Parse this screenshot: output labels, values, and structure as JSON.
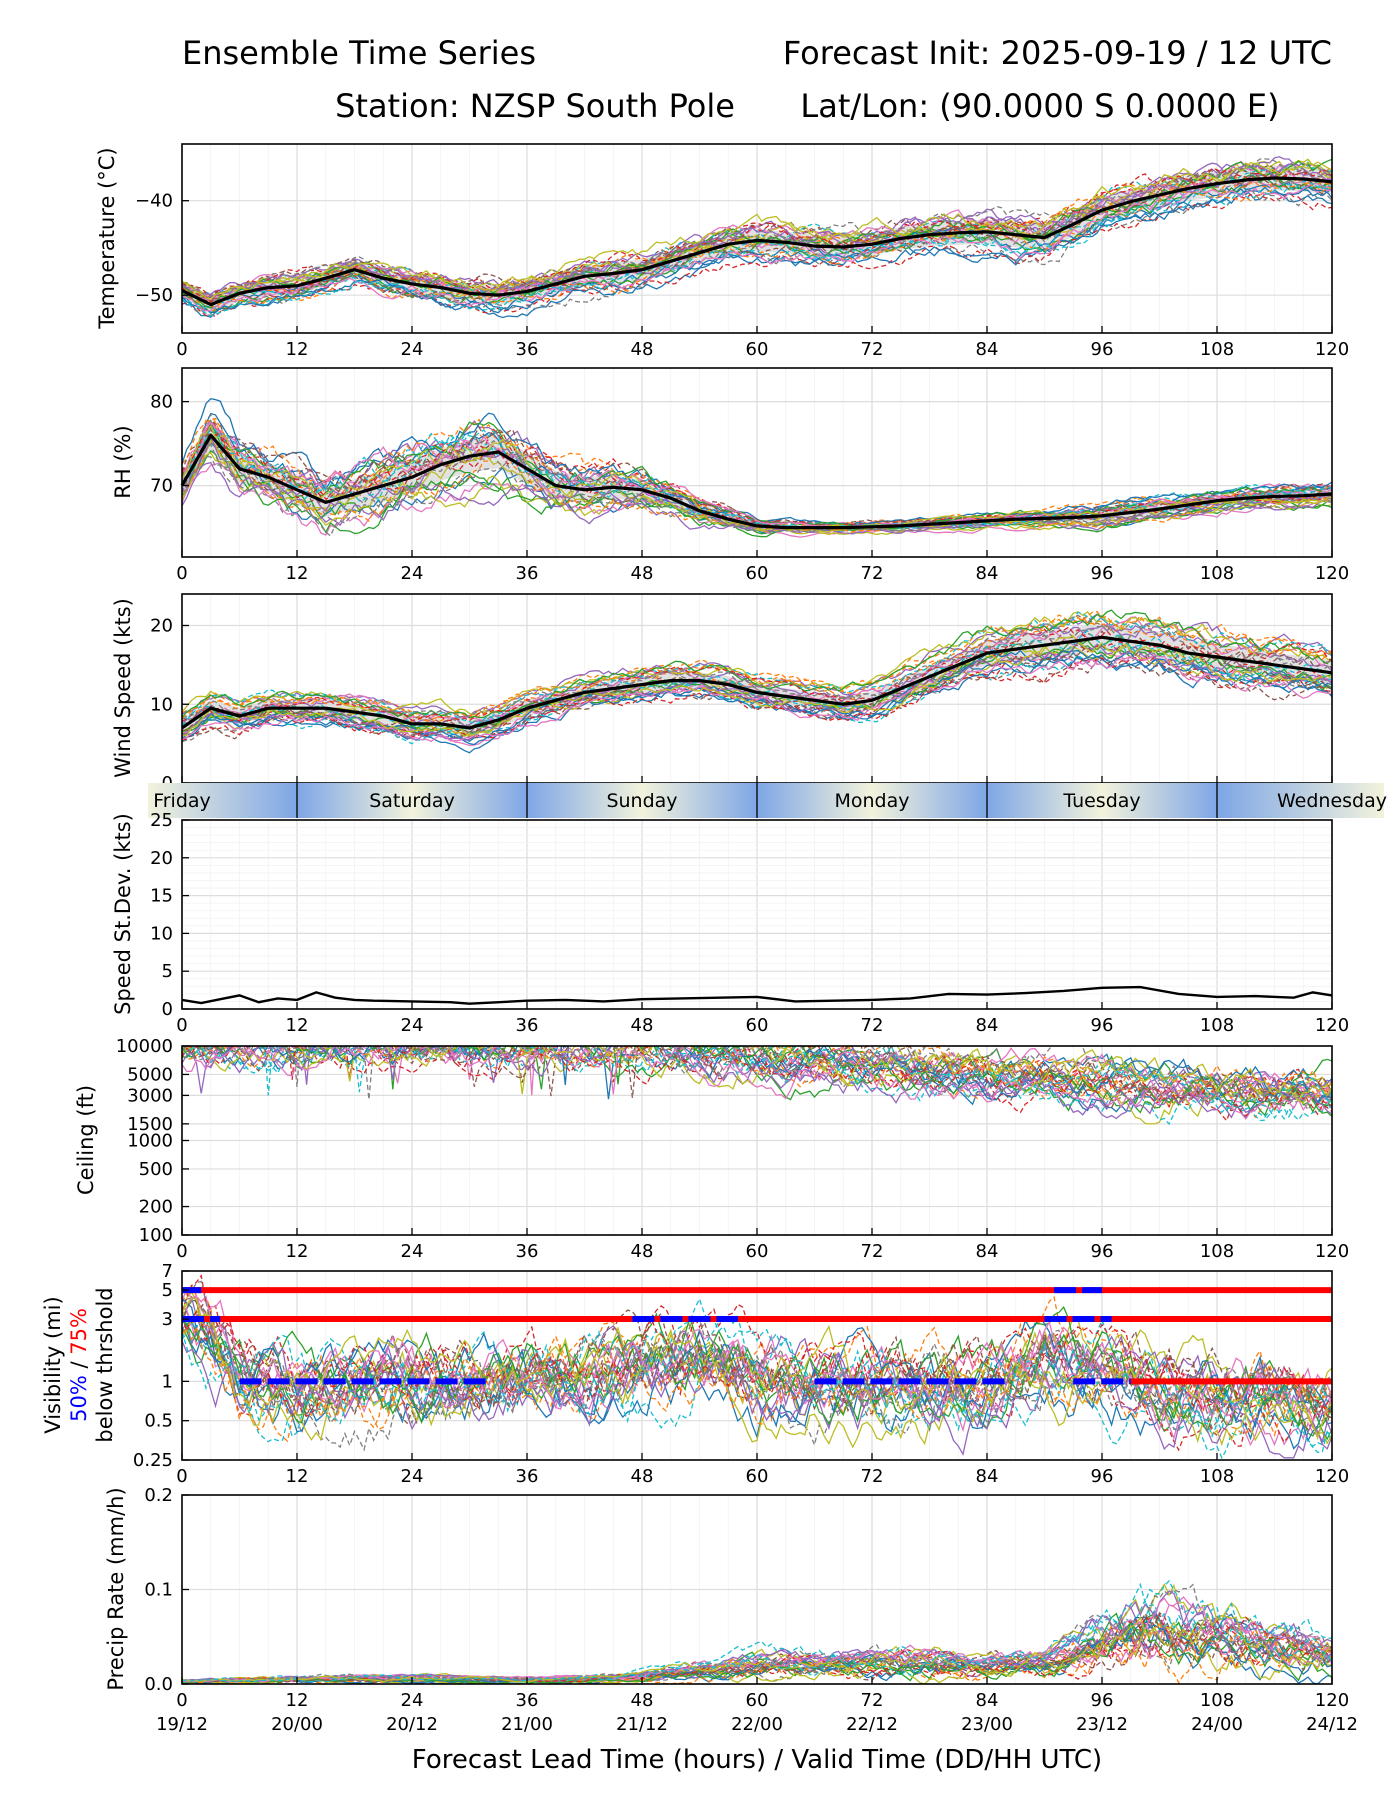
{
  "header": {
    "title_left": "Ensemble Time Series",
    "title_right": "Forecast Init: 2025-09-19 / 12 UTC",
    "station": "Station: NZSP South Pole",
    "latlon": "Lat/Lon: (90.0000 S 0.0000 E)"
  },
  "colors": {
    "mean": "#000000",
    "spread": "#d9d9d9",
    "threshold_50": "#0000ff",
    "threshold_75": "#ff0000",
    "grid": "#e6e6e6",
    "night": "#7ea6e6",
    "day": "#f3f3dc"
  },
  "chart_data": [
    {
      "id": "temperature",
      "type": "line",
      "ylabel": "Temperature (°C)",
      "ylim": [
        -54,
        -34
      ],
      "yticks": [
        -50,
        -40
      ],
      "xlim": [
        0,
        120
      ],
      "xticks": [
        0,
        12,
        24,
        36,
        48,
        60,
        72,
        84,
        96,
        108,
        120
      ],
      "ensemble_members": 30,
      "mean": {
        "x": [
          0,
          3,
          6,
          9,
          12,
          15,
          18,
          21,
          24,
          27,
          30,
          33,
          36,
          39,
          42,
          45,
          48,
          51,
          54,
          57,
          60,
          63,
          66,
          69,
          72,
          75,
          78,
          81,
          84,
          87,
          90,
          93,
          96,
          99,
          102,
          105,
          108,
          111,
          114,
          117,
          120
        ],
        "values": [
          -49.5,
          -51,
          -49.8,
          -49.2,
          -49,
          -48.2,
          -47.3,
          -48.2,
          -48.8,
          -49.2,
          -49.8,
          -50,
          -49.6,
          -48.8,
          -48,
          -47.7,
          -47.3,
          -46.4,
          -45.5,
          -44.6,
          -44.2,
          -44.4,
          -44.8,
          -44.9,
          -44.6,
          -44,
          -43.6,
          -43.4,
          -43.3,
          -43.6,
          -43.9,
          -42.5,
          -41,
          -40.1,
          -39.4,
          -38.7,
          -38.2,
          -37.8,
          -37.6,
          -37.7,
          -38
        ]
      },
      "spread": [
        2.2,
        2.4,
        2.4,
        2.5,
        2.5,
        2.6,
        2.7,
        2.8,
        2.9,
        3,
        3,
        3,
        3,
        3.1,
        3.1,
        3.2,
        3.2,
        3.2,
        3.2,
        3.3,
        3.3,
        3.3,
        3.4,
        3.4,
        3.4,
        3.5,
        3.5,
        3.6,
        3.7,
        3.8,
        3.8,
        3.8,
        3.8,
        3.8,
        3.8,
        3.8,
        3.8,
        3.8,
        3.8,
        3.8,
        3.8
      ]
    },
    {
      "id": "rh",
      "type": "line",
      "ylabel": "RH (%)",
      "ylim": [
        61.5,
        84
      ],
      "yticks": [
        70,
        80
      ],
      "xlim": [
        0,
        120
      ],
      "xticks": [
        0,
        12,
        24,
        36,
        48,
        60,
        72,
        84,
        96,
        108,
        120
      ],
      "ensemble_members": 30,
      "mean": {
        "x": [
          0,
          3,
          6,
          9,
          12,
          15,
          18,
          21,
          24,
          27,
          30,
          33,
          36,
          39,
          42,
          45,
          48,
          51,
          54,
          57,
          60,
          63,
          66,
          69,
          72,
          75,
          78,
          81,
          84,
          87,
          90,
          93,
          96,
          99,
          102,
          105,
          108,
          111,
          114,
          117,
          120
        ],
        "values": [
          70,
          76,
          72,
          71,
          69.5,
          68,
          69,
          70,
          71,
          72.5,
          73.5,
          74,
          72,
          70,
          69.5,
          69.8,
          69.5,
          68.5,
          67,
          66,
          65.2,
          65,
          65,
          65,
          65.1,
          65.2,
          65.4,
          65.6,
          65.8,
          66,
          66.1,
          66.2,
          66.4,
          66.8,
          67.2,
          67.7,
          68.2,
          68.5,
          68.7,
          68.8,
          69
        ]
      },
      "spread": [
        4,
        5,
        5,
        5,
        5,
        5,
        5,
        5.5,
        5.5,
        5.5,
        5.5,
        5.5,
        5.5,
        5,
        4.5,
        4,
        3.5,
        3,
        2.5,
        2,
        1.5,
        1.2,
        1,
        1,
        1,
        1,
        1,
        1.2,
        1.2,
        1.5,
        1.5,
        1.7,
        1.8,
        2,
        2,
        2,
        2,
        2,
        2,
        2,
        2
      ]
    },
    {
      "id": "wind_speed",
      "type": "line",
      "ylabel": "Wind Speed (kts)",
      "ylim": [
        0,
        24
      ],
      "yticks": [
        0,
        10,
        20
      ],
      "xlim": [
        0,
        120
      ],
      "xticks": [
        0,
        12,
        24,
        36,
        48,
        60,
        72,
        84,
        96,
        108,
        120
      ],
      "ensemble_members": 30,
      "mean": {
        "x": [
          0,
          3,
          6,
          9,
          12,
          15,
          18,
          21,
          24,
          27,
          30,
          33,
          36,
          39,
          42,
          45,
          48,
          51,
          54,
          57,
          60,
          63,
          66,
          69,
          72,
          75,
          78,
          81,
          84,
          87,
          90,
          93,
          96,
          99,
          102,
          105,
          108,
          111,
          114,
          117,
          120
        ],
        "values": [
          7,
          9.5,
          8.5,
          9.5,
          9.5,
          9.5,
          9,
          8.5,
          7.5,
          7.5,
          7,
          8,
          9.5,
          10.5,
          11.5,
          12,
          12.5,
          13,
          13,
          12.5,
          11.5,
          11,
          10.5,
          10,
          10.5,
          12,
          13.5,
          15,
          16.5,
          17,
          17.5,
          18,
          18.5,
          18,
          17.5,
          16.5,
          16,
          15.5,
          15,
          14.5,
          14
        ]
      },
      "spread": [
        3,
        3,
        3,
        3,
        3,
        3,
        3,
        3,
        3,
        3,
        3,
        3,
        3,
        3,
        3,
        3,
        3,
        3,
        3,
        3,
        3,
        3,
        3,
        3,
        3.2,
        3.5,
        3.8,
        4,
        4.3,
        4.6,
        5,
        5,
        5,
        5,
        5,
        5,
        5,
        4.5,
        4.5,
        4.5,
        4.5
      ]
    },
    {
      "id": "day_strip",
      "type": "bar",
      "labels": [
        "Friday",
        "Saturday",
        "Sunday",
        "Monday",
        "Tuesday",
        "Wednesday"
      ],
      "label_hours": [
        0,
        24,
        48,
        72,
        96,
        120
      ],
      "boundary_hours": [
        12,
        36,
        60,
        84,
        108
      ]
    },
    {
      "id": "speed_stdev",
      "type": "line",
      "ylabel": "Speed St.Dev. (kts)",
      "ylim": [
        0,
        25
      ],
      "yticks": [
        0,
        5,
        10,
        15,
        20,
        25
      ],
      "xlim": [
        0,
        120
      ],
      "xticks": [
        0,
        12,
        24,
        36,
        48,
        60,
        72,
        84,
        96,
        108,
        120
      ],
      "series": [
        {
          "name": "st.dev",
          "x": [
            0,
            2,
            4,
            6,
            8,
            10,
            12,
            14,
            16,
            18,
            20,
            24,
            28,
            30,
            36,
            40,
            44,
            48,
            52,
            56,
            60,
            64,
            68,
            72,
            76,
            80,
            84,
            88,
            92,
            96,
            100,
            104,
            108,
            112,
            116,
            118,
            120
          ],
          "values": [
            1.2,
            0.8,
            1.3,
            1.8,
            0.9,
            1.4,
            1.2,
            2.2,
            1.5,
            1.2,
            1.1,
            1.0,
            0.9,
            0.7,
            1.1,
            1.2,
            1.0,
            1.3,
            1.4,
            1.5,
            1.6,
            1.0,
            1.1,
            1.2,
            1.4,
            2.0,
            1.9,
            2.1,
            2.4,
            2.8,
            2.9,
            2.0,
            1.6,
            1.7,
            1.5,
            2.2,
            1.8
          ]
        }
      ]
    },
    {
      "id": "ceiling",
      "type": "line",
      "ylabel": "Ceiling (ft)",
      "yscale": "log",
      "ylim": [
        100,
        10000
      ],
      "yticks": [
        100,
        200,
        500,
        1000,
        1500,
        3000,
        5000,
        10000
      ],
      "xlim": [
        0,
        120
      ],
      "xticks": [
        0,
        12,
        24,
        36,
        48,
        60,
        72,
        84,
        96,
        108,
        120
      ],
      "ensemble_members": 30,
      "typical": {
        "x": [
          0,
          12,
          24,
          36,
          48,
          54,
          60,
          66,
          72,
          78,
          84,
          90,
          96,
          102,
          108,
          114,
          120
        ],
        "values": [
          10000,
          10000,
          10000,
          10000,
          10000,
          8500,
          7000,
          6500,
          6000,
          5200,
          4500,
          4200,
          3800,
          3500,
          3300,
          3200,
          3300
        ]
      }
    },
    {
      "id": "visibility",
      "type": "line",
      "ylabel": "Visibility (mi)",
      "ylabel_50": "50%",
      "ylabel_sep": " / ",
      "ylabel_75": "75%",
      "ylabel_suffix": "below thrshold",
      "yscale": "log",
      "ylim": [
        0.25,
        7
      ],
      "yticks": [
        0.25,
        0.5,
        1,
        3,
        5,
        7
      ],
      "xlim": [
        0,
        120
      ],
      "xticks": [
        0,
        12,
        24,
        36,
        48,
        60,
        72,
        84,
        96,
        108,
        120
      ],
      "ensemble_members": 30,
      "thresholds_75": [
        {
          "level": 5,
          "from": 0,
          "to": 120
        },
        {
          "level": 3,
          "from": 0,
          "to": 120
        },
        {
          "level": 1,
          "from": 99,
          "to": 120
        }
      ],
      "thresholds_50": [
        {
          "level": 5,
          "from": 0,
          "to": 2
        },
        {
          "level": 3,
          "from": 0,
          "to": 4
        },
        {
          "level": 1,
          "from": 6,
          "to": 32
        },
        {
          "level": 3,
          "from": 47,
          "to": 58
        },
        {
          "level": 1,
          "from": 66,
          "to": 86
        },
        {
          "level": 5,
          "from": 91,
          "to": 96
        },
        {
          "level": 3,
          "from": 90,
          "to": 97
        },
        {
          "level": 1,
          "from": 93,
          "to": 99
        }
      ],
      "typical": {
        "x": [
          0,
          3,
          6,
          12,
          18,
          24,
          30,
          36,
          42,
          48,
          54,
          60,
          66,
          72,
          78,
          84,
          90,
          96,
          102,
          108,
          114,
          120
        ],
        "values": [
          3,
          2,
          1.0,
          0.8,
          0.9,
          1.0,
          0.9,
          1.0,
          1.1,
          1.2,
          1.6,
          1.0,
          0.9,
          0.9,
          0.9,
          0.8,
          1.5,
          1.2,
          0.8,
          0.7,
          0.7,
          0.7
        ]
      }
    },
    {
      "id": "precip",
      "type": "line",
      "ylabel": "Precip Rate (mm/h)",
      "ylim": [
        0,
        0.2
      ],
      "yticks": [
        "0.0",
        "0.1",
        "0.2"
      ],
      "xlim": [
        0,
        120
      ],
      "xticks": [
        0,
        12,
        24,
        36,
        48,
        60,
        72,
        84,
        96,
        108,
        120
      ],
      "xticks_valid": [
        "19/12",
        "20/00",
        "20/12",
        "21/00",
        "21/12",
        "22/00",
        "22/12",
        "23/00",
        "23/12",
        "24/00",
        "24/12"
      ],
      "xlabel": "Forecast Lead Time (hours) / Valid Time (DD/HH UTC)",
      "ensemble_members": 30,
      "typical": {
        "x": [
          0,
          12,
          24,
          36,
          48,
          54,
          60,
          66,
          72,
          78,
          84,
          90,
          96,
          102,
          108,
          114,
          120
        ],
        "values": [
          0.003,
          0.005,
          0.006,
          0.004,
          0.008,
          0.015,
          0.02,
          0.02,
          0.025,
          0.024,
          0.018,
          0.022,
          0.045,
          0.06,
          0.05,
          0.04,
          0.035
        ]
      }
    }
  ]
}
